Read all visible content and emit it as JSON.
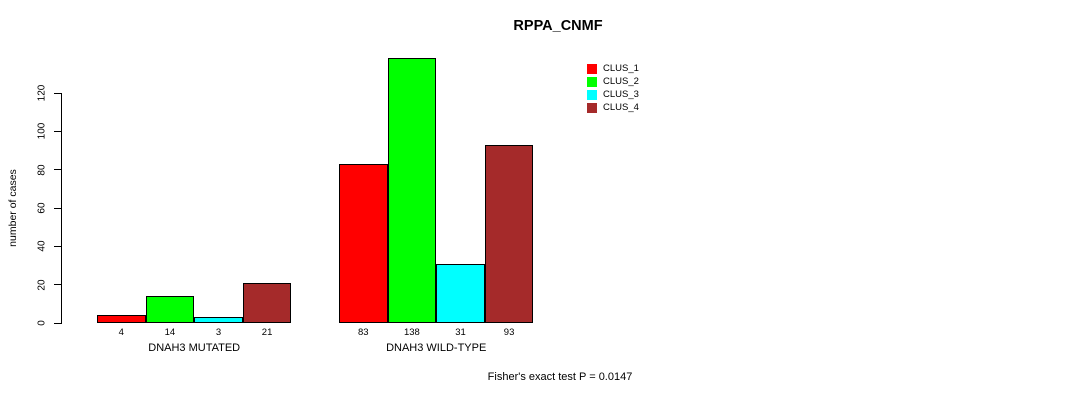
{
  "chart_data": {
    "type": "bar",
    "title": "RPPA_CNMF",
    "ylabel": "number of cases",
    "yticks": [
      0,
      20,
      40,
      60,
      80,
      100,
      120
    ],
    "axis_range_shown": [
      0,
      120
    ],
    "grid": false,
    "categories": [
      "DNAH3 MUTATED",
      "DNAH3 WILD-TYPE"
    ],
    "series": [
      {
        "name": "CLUS_1",
        "color": "#ff0000",
        "values": [
          4,
          83
        ]
      },
      {
        "name": "CLUS_2",
        "color": "#00ff00",
        "values": [
          14,
          138
        ]
      },
      {
        "name": "CLUS_3",
        "color": "#00ffff",
        "values": [
          3,
          31
        ]
      },
      {
        "name": "CLUS_4",
        "color": "#a52a2a",
        "values": [
          21,
          93
        ]
      }
    ],
    "bar_value_labels": [
      [
        4,
        14,
        3,
        21
      ],
      [
        83,
        138,
        31,
        93
      ]
    ],
    "legend": {
      "position": "top-right",
      "entries": [
        "CLUS_1",
        "CLUS_2",
        "CLUS_3",
        "CLUS_4"
      ]
    },
    "annotation": "Fisher's exact test P = 0.0147",
    "bar_border_color": "#000000",
    "text_color": "#000000"
  }
}
